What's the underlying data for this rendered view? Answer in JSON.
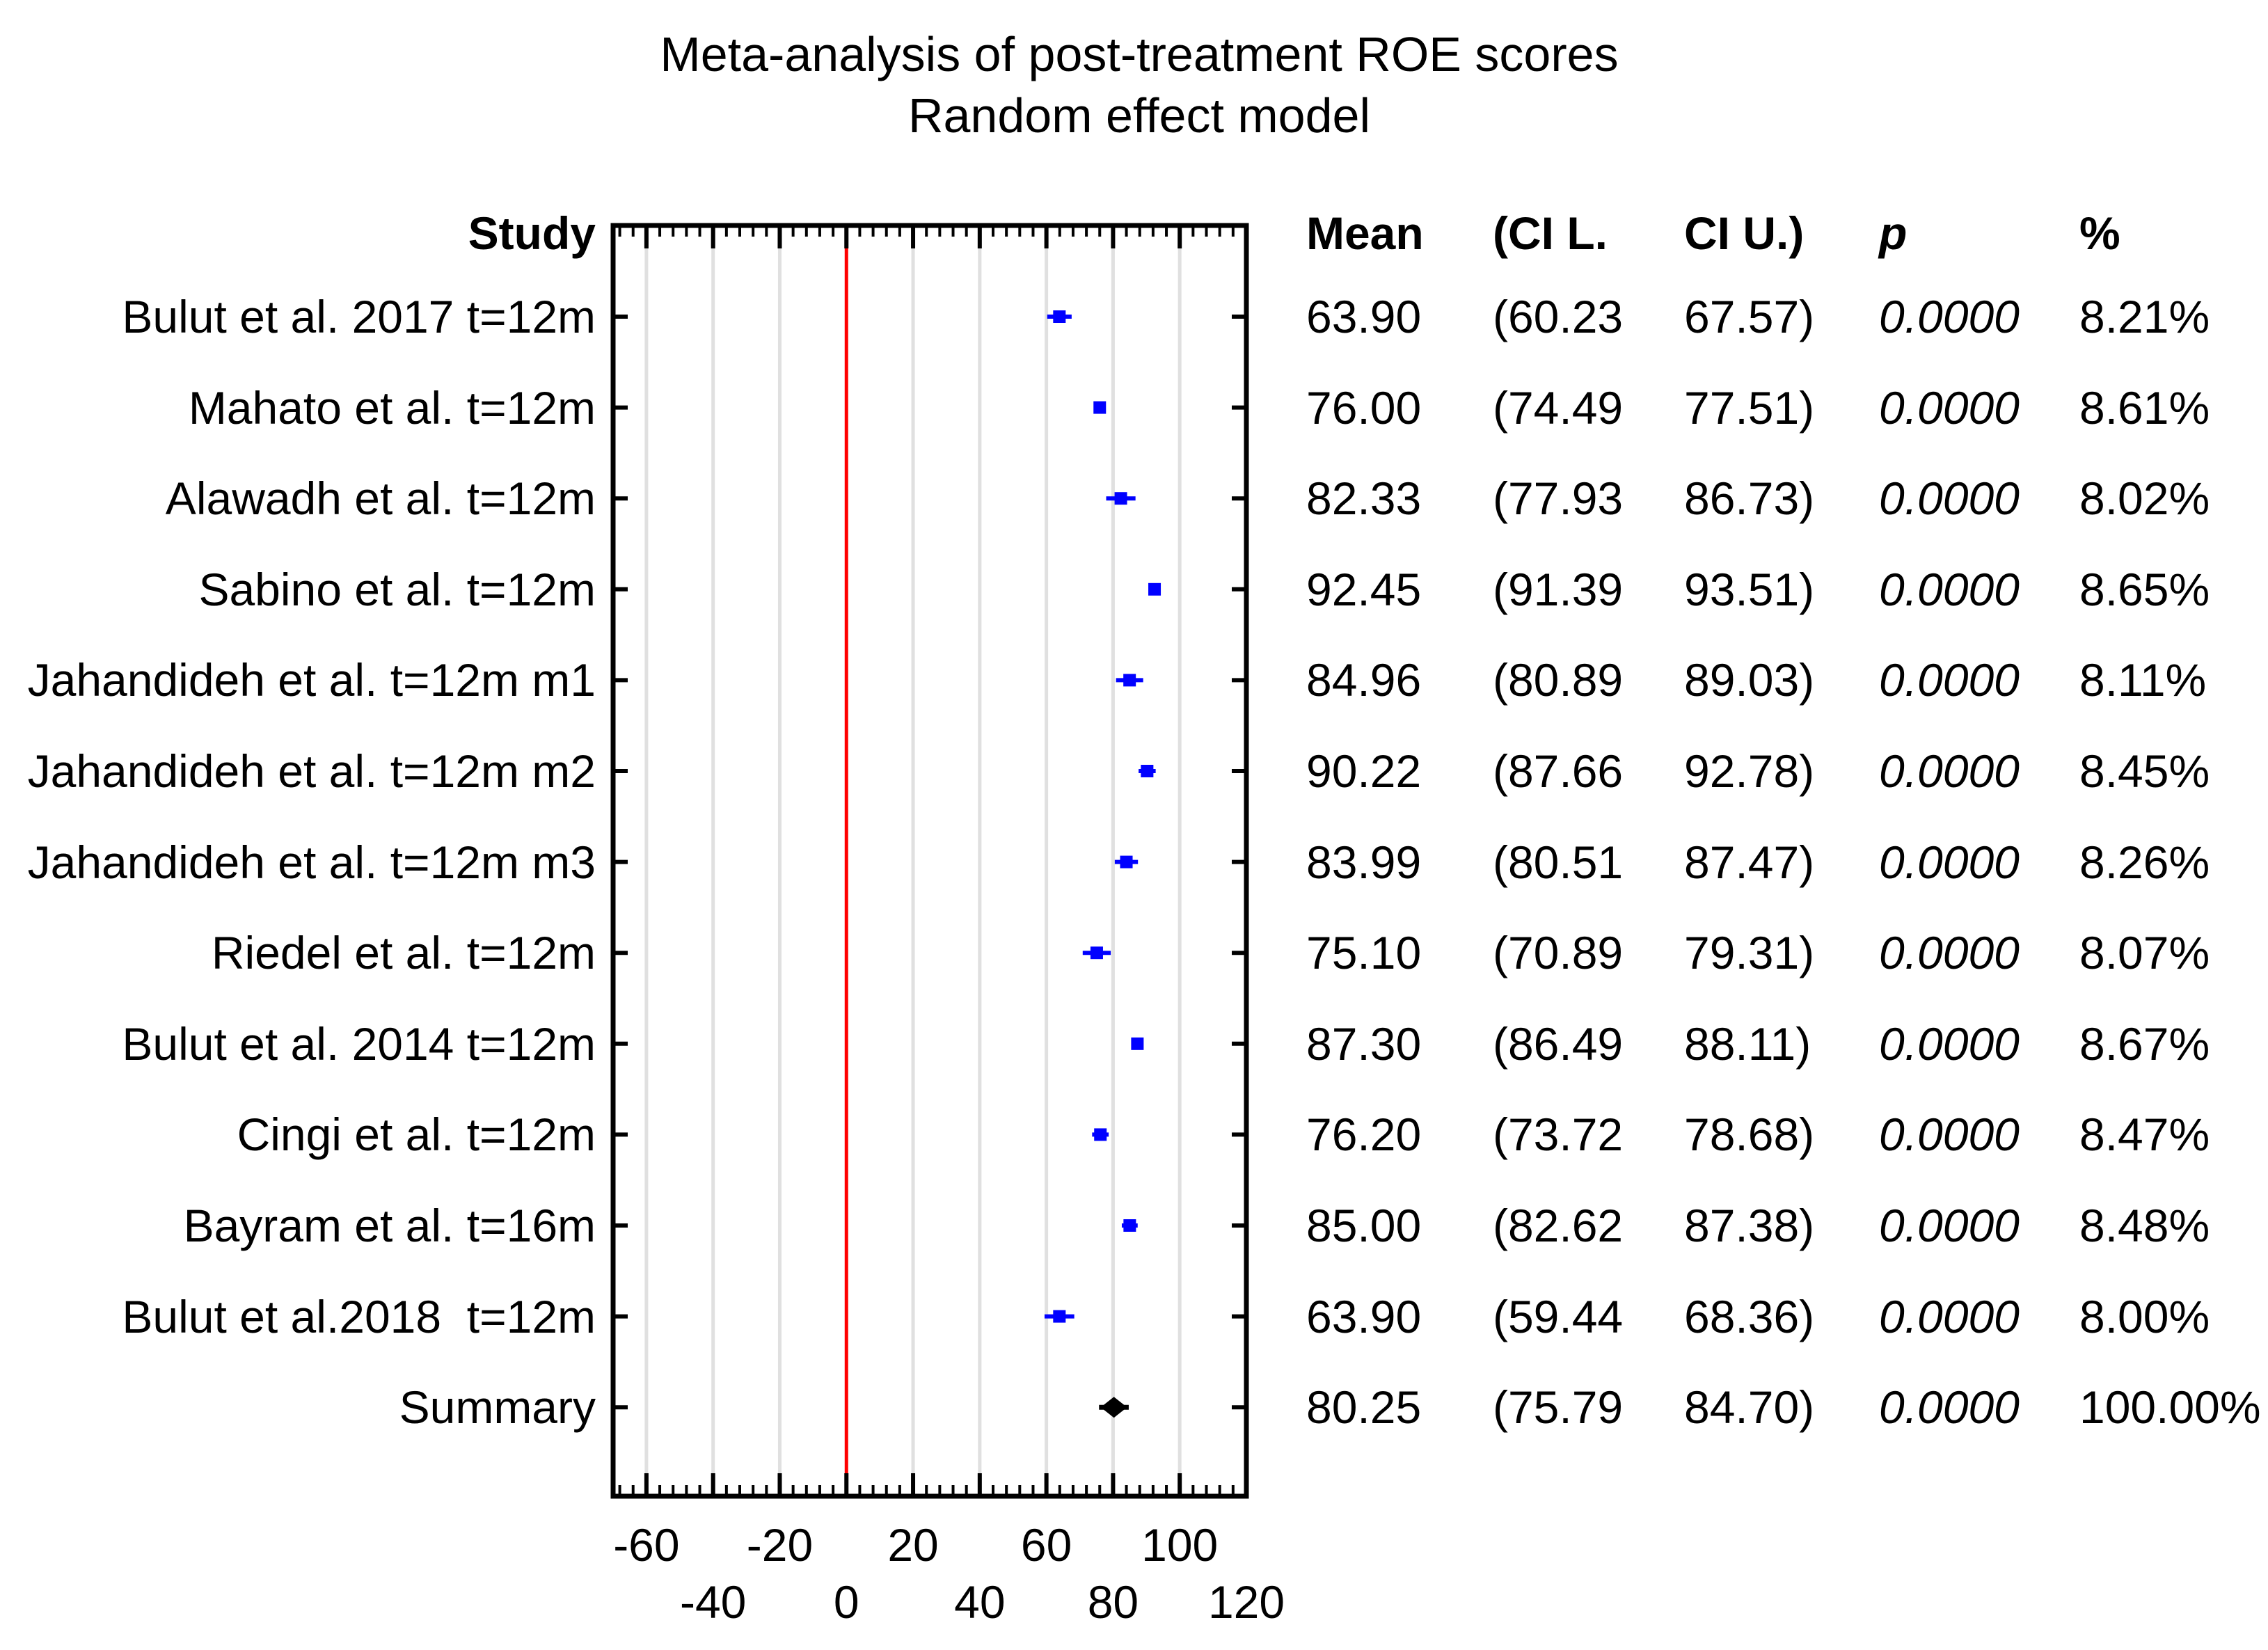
{
  "title": {
    "line1": "Meta-analysis of post-treatment ROE scores",
    "line2": "Random effect model"
  },
  "columns": {
    "study": "Study",
    "mean": "Mean",
    "ci_l": "(CI L.",
    "ci_u": "CI U.)",
    "p": "p",
    "weight": "%"
  },
  "chart_data": {
    "type": "forest",
    "title": "Meta-analysis of post-treatment ROE scores",
    "subtitle": "Random effect model",
    "x_axis": {
      "min": -70,
      "max": 120,
      "zero_line": 0,
      "major_ticks": [
        -60,
        -40,
        -20,
        0,
        20,
        40,
        60,
        80,
        100,
        120
      ],
      "minor_tick_step": 4,
      "tick_label_row1": [
        {
          "v": -60,
          "t": "-60"
        },
        {
          "v": -20,
          "t": "-20"
        },
        {
          "v": 20,
          "t": "20"
        },
        {
          "v": 60,
          "t": "60"
        },
        {
          "v": 100,
          "t": "100"
        }
      ],
      "tick_label_row2": [
        {
          "v": -40,
          "t": "-40"
        },
        {
          "v": 0,
          "t": "0"
        },
        {
          "v": 40,
          "t": "40"
        },
        {
          "v": 80,
          "t": "80"
        },
        {
          "v": 120,
          "t": "120"
        }
      ]
    },
    "grid": true,
    "legend": false,
    "colors": {
      "marker": "#0000ff",
      "summary_marker": "#000000",
      "zero_line": "#ff0000",
      "gridline": "#e0e0e0",
      "frame": "#000000"
    },
    "studies": [
      {
        "label": "Bulut et al. 2017 t=12m",
        "mean": 63.9,
        "ci_low": 60.23,
        "ci_high": 67.57,
        "mean_text": "63.90",
        "ci_l_text": "(60.23",
        "ci_u_text": "67.57)",
        "p_text": "0.0000",
        "weight_text": "8.21%"
      },
      {
        "label": "Mahato et al. t=12m",
        "mean": 76.0,
        "ci_low": 74.49,
        "ci_high": 77.51,
        "mean_text": "76.00",
        "ci_l_text": "(74.49",
        "ci_u_text": "77.51)",
        "p_text": "0.0000",
        "weight_text": "8.61%"
      },
      {
        "label": "Alawadh et al. t=12m",
        "mean": 82.33,
        "ci_low": 77.93,
        "ci_high": 86.73,
        "mean_text": "82.33",
        "ci_l_text": "(77.93",
        "ci_u_text": "86.73)",
        "p_text": "0.0000",
        "weight_text": "8.02%"
      },
      {
        "label": "Sabino et al. t=12m",
        "mean": 92.45,
        "ci_low": 91.39,
        "ci_high": 93.51,
        "mean_text": "92.45",
        "ci_l_text": "(91.39",
        "ci_u_text": "93.51)",
        "p_text": "0.0000",
        "weight_text": "8.65%"
      },
      {
        "label": "Jahandideh et al. t=12m m1",
        "mean": 84.96,
        "ci_low": 80.89,
        "ci_high": 89.03,
        "mean_text": "84.96",
        "ci_l_text": "(80.89",
        "ci_u_text": "89.03)",
        "p_text": "0.0000",
        "weight_text": "8.11%"
      },
      {
        "label": "Jahandideh et al. t=12m m2",
        "mean": 90.22,
        "ci_low": 87.66,
        "ci_high": 92.78,
        "mean_text": "90.22",
        "ci_l_text": "(87.66",
        "ci_u_text": "92.78)",
        "p_text": "0.0000",
        "weight_text": "8.45%"
      },
      {
        "label": "Jahandideh et al. t=12m m3",
        "mean": 83.99,
        "ci_low": 80.51,
        "ci_high": 87.47,
        "mean_text": "83.99",
        "ci_l_text": "(80.51",
        "ci_u_text": "87.47)",
        "p_text": "0.0000",
        "weight_text": "8.26%"
      },
      {
        "label": "Riedel et al. t=12m",
        "mean": 75.1,
        "ci_low": 70.89,
        "ci_high": 79.31,
        "mean_text": "75.10",
        "ci_l_text": "(70.89",
        "ci_u_text": "79.31)",
        "p_text": "0.0000",
        "weight_text": "8.07%"
      },
      {
        "label": "Bulut et al. 2014 t=12m",
        "mean": 87.3,
        "ci_low": 86.49,
        "ci_high": 88.11,
        "mean_text": "87.30",
        "ci_l_text": "(86.49",
        "ci_u_text": "88.11)",
        "p_text": "0.0000",
        "weight_text": "8.67%"
      },
      {
        "label": "Cingi et al. t=12m",
        "mean": 76.2,
        "ci_low": 73.72,
        "ci_high": 78.68,
        "mean_text": "76.20",
        "ci_l_text": "(73.72",
        "ci_u_text": "78.68)",
        "p_text": "0.0000",
        "weight_text": "8.47%"
      },
      {
        "label": "Bayram et al. t=16m",
        "mean": 85.0,
        "ci_low": 82.62,
        "ci_high": 87.38,
        "mean_text": "85.00",
        "ci_l_text": "(82.62",
        "ci_u_text": "87.38)",
        "p_text": "0.0000",
        "weight_text": "8.48%"
      },
      {
        "label": "Bulut et al.2018  t=12m",
        "mean": 63.9,
        "ci_low": 59.44,
        "ci_high": 68.36,
        "mean_text": "63.90",
        "ci_l_text": "(59.44",
        "ci_u_text": "68.36)",
        "p_text": "0.0000",
        "weight_text": "8.00%"
      }
    ],
    "summary": {
      "label": "Summary",
      "mean": 80.25,
      "ci_low": 75.79,
      "ci_high": 84.7,
      "mean_text": "80.25",
      "ci_l_text": "(75.79",
      "ci_u_text": "84.70)",
      "p_text": "0.0000",
      "weight_text": "100.00%"
    }
  }
}
